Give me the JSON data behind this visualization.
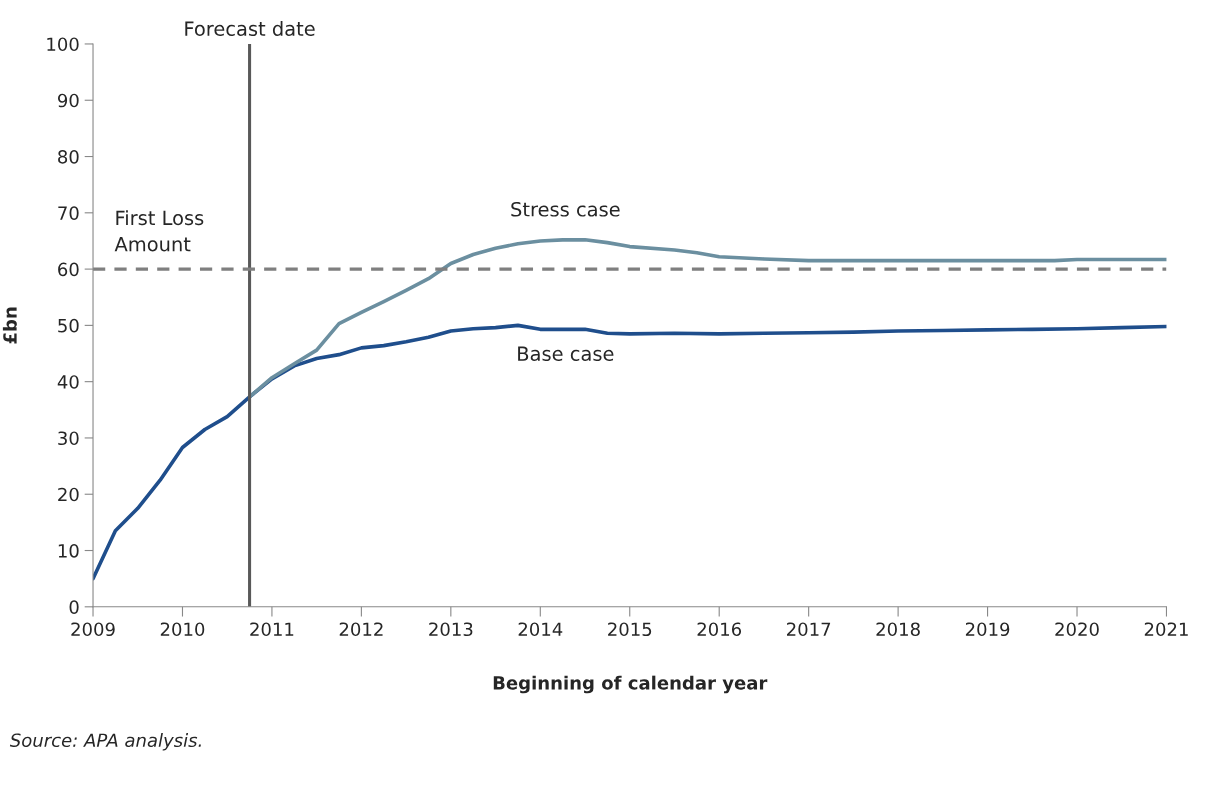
{
  "chart_data": {
    "type": "line",
    "ylabel": "£bn",
    "xlabel": "Beginning of calendar year",
    "xlim": [
      2009,
      2021
    ],
    "xticks": [
      2009,
      2010,
      2011,
      2012,
      2013,
      2014,
      2015,
      2016,
      2017,
      2018,
      2019,
      2020,
      2021
    ],
    "ylim": [
      0,
      100
    ],
    "yticks": [
      0,
      10,
      20,
      30,
      40,
      50,
      60,
      70,
      80,
      90,
      100
    ],
    "grid": false,
    "legend": false,
    "marker": "none",
    "series": [
      {
        "name": "Base case",
        "color": "#1f4e8c",
        "x": [
          2009,
          2009.25,
          2009.5,
          2009.75,
          2010,
          2010.25,
          2010.5,
          2010.75,
          2011,
          2011.25,
          2011.5,
          2011.75,
          2012,
          2012.25,
          2012.5,
          2012.75,
          2013,
          2013.25,
          2013.5,
          2013.75,
          2014,
          2014.25,
          2014.5,
          2014.75,
          2015,
          2015.5,
          2016,
          2016.5,
          2017,
          2017.5,
          2018,
          2018.5,
          2019,
          2019.5,
          2020,
          2020.5,
          2021
        ],
        "values": [
          5,
          13.5,
          17.5,
          22.5,
          28.3,
          31.5,
          33.8,
          37.3,
          40.5,
          42.8,
          44.1,
          44.8,
          46,
          46.4,
          47.1,
          47.9,
          49,
          49.4,
          49.6,
          50,
          49.3,
          49.3,
          49.3,
          48.6,
          48.5,
          48.6,
          48.5,
          48.6,
          48.7,
          48.8,
          49,
          49.1,
          49.2,
          49.3,
          49.4,
          49.6,
          49.8
        ]
      },
      {
        "name": "Stress case",
        "color": "#6b8fa0",
        "x": [
          2010.75,
          2011,
          2011.25,
          2011.5,
          2011.75,
          2012,
          2012.25,
          2012.5,
          2012.75,
          2013,
          2013.25,
          2013.5,
          2013.75,
          2014,
          2014.25,
          2014.5,
          2014.75,
          2015,
          2015.5,
          2015.75,
          2016,
          2016.5,
          2017,
          2018,
          2019,
          2019.75,
          2020,
          2021
        ],
        "values": [
          37.3,
          40.7,
          43.2,
          45.6,
          50.3,
          52.3,
          54.2,
          56.2,
          58.3,
          61,
          62.6,
          63.7,
          64.5,
          65,
          65.2,
          65.2,
          64.7,
          64,
          63.4,
          62.9,
          62.2,
          61.8,
          61.5,
          61.5,
          61.5,
          61.5,
          61.7,
          61.7
        ]
      }
    ],
    "ref_lines": [
      {
        "axis": "x",
        "value": 2010.75,
        "label": "Forecast date",
        "color": "#595959",
        "line_style": "solid"
      },
      {
        "axis": "y",
        "value": 60,
        "label": "First Loss\nAmount",
        "color": "#7f7f7f",
        "line_style": "dashed"
      }
    ],
    "annotations": [
      "Source: APA analysis."
    ]
  }
}
